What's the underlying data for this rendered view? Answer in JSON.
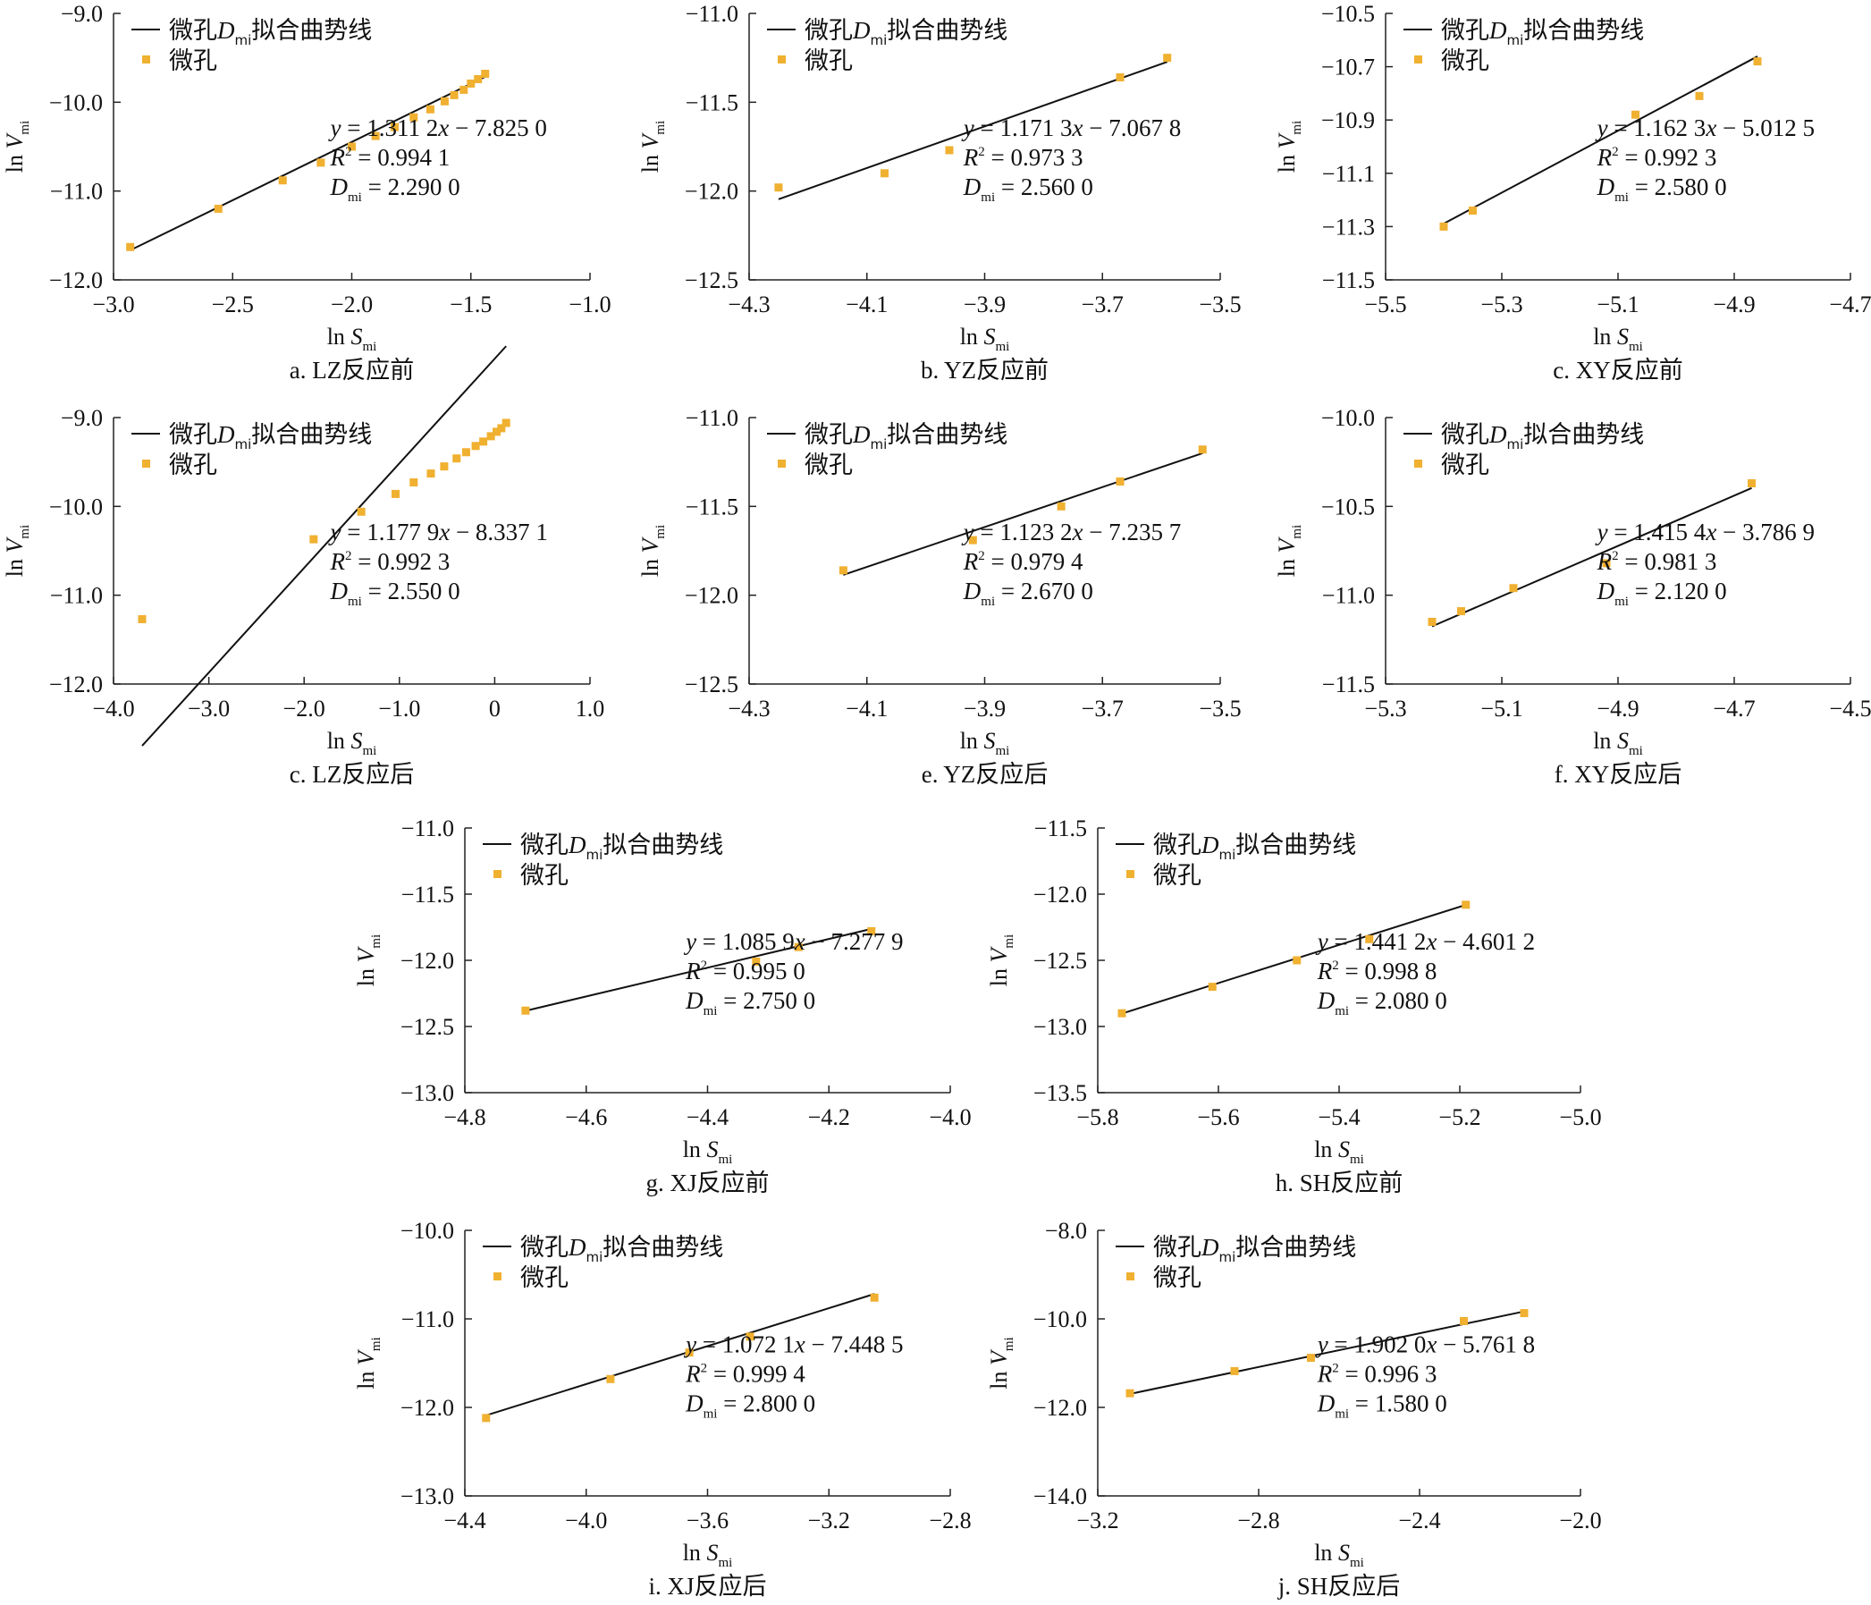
{
  "colors": {
    "point": "#f0b030",
    "line": "#111111",
    "axis": "#222222"
  },
  "legend": {
    "line_label_pre": "微孔",
    "line_label_D": "D",
    "line_label_sub": "mi",
    "line_label_post": "拟合曲势线",
    "points_label": "微孔"
  },
  "axis_labels": {
    "x": {
      "prefix": "ln ",
      "var": "S",
      "sub": "mi"
    },
    "y": {
      "prefix": "ln ",
      "var": "V",
      "sub": "mi"
    }
  },
  "chart_data": [
    {
      "type": "scatter",
      "caption": "a. LZ反应前",
      "xlim": [
        -3.0,
        -1.0
      ],
      "ylim": [
        -12.0,
        -9.0
      ],
      "xticks": [
        "−3.0",
        "−2.5",
        "−2.0",
        "−1.5",
        "−1.0"
      ],
      "yticks": [
        "−9.0",
        "−10.0",
        "−11.0",
        "−12.0"
      ],
      "yticks_values": [
        -9.0,
        -10.0,
        -11.0,
        -12.0
      ],
      "xticks_values": [
        -3.0,
        -2.5,
        -2.0,
        -1.5,
        -1.0
      ],
      "points": [
        [
          -2.93,
          -11.63
        ],
        [
          -2.56,
          -11.2
        ],
        [
          -2.29,
          -10.88
        ],
        [
          -2.13,
          -10.68
        ],
        [
          -2.0,
          -10.5
        ],
        [
          -1.9,
          -10.38
        ],
        [
          -1.82,
          -10.28
        ],
        [
          -1.74,
          -10.17
        ],
        [
          -1.67,
          -10.08
        ],
        [
          -1.61,
          -9.99
        ],
        [
          -1.57,
          -9.92
        ],
        [
          -1.53,
          -9.86
        ],
        [
          -1.5,
          -9.79
        ],
        [
          -1.47,
          -9.74
        ],
        [
          -1.44,
          -9.68
        ]
      ],
      "fit": {
        "x": [
          -2.93,
          -1.44
        ],
        "slope": 1.3112,
        "intercept": -7.825
      },
      "equation": {
        "lhs": "y",
        "mid": " = 1.311 2",
        "x": "x",
        "rest": " − 7.825 0"
      },
      "r2_value": " = 0.994 1",
      "d_value": " = 2.290 0"
    },
    {
      "type": "scatter",
      "caption": "b. YZ反应前",
      "xlim": [
        -4.3,
        -3.5
      ],
      "ylim": [
        -12.5,
        -11.0
      ],
      "xticks": [
        "−4.3",
        "−4.1",
        "−3.9",
        "−3.7",
        "−3.5"
      ],
      "yticks": [
        "−11.0",
        "−11.5",
        "−12.0",
        "−12.5"
      ],
      "yticks_values": [
        -11.0,
        -11.5,
        -12.0,
        -12.5
      ],
      "xticks_values": [
        -4.3,
        -4.1,
        -3.9,
        -3.7,
        -3.5
      ],
      "points": [
        [
          -4.25,
          -11.98
        ],
        [
          -4.07,
          -11.9
        ],
        [
          -3.96,
          -11.77
        ],
        [
          -3.67,
          -11.36
        ],
        [
          -3.59,
          -11.25
        ]
      ],
      "fit": {
        "x": [
          -4.25,
          -3.59
        ],
        "slope": 1.1713,
        "intercept": -7.0678
      },
      "equation": {
        "lhs": "y",
        "mid": " = 1.171 3",
        "x": "x",
        "rest": " − 7.067 8"
      },
      "r2_value": " = 0.973 3",
      "d_value": " = 2.560 0"
    },
    {
      "type": "scatter",
      "caption": "c. XY反应前",
      "xlim": [
        -5.5,
        -4.7
      ],
      "ylim": [
        -11.5,
        -10.5
      ],
      "xticks": [
        "−5.5",
        "−5.3",
        "−5.1",
        "−4.9",
        "−4.7"
      ],
      "yticks": [
        "−10.5",
        "−10.7",
        "−10.9",
        "−11.1",
        "−11.3",
        "−11.5"
      ],
      "yticks_values": [
        -10.5,
        -10.7,
        -10.9,
        -11.1,
        -11.3,
        -11.5
      ],
      "xticks_values": [
        -5.5,
        -5.3,
        -5.1,
        -4.9,
        -4.7
      ],
      "points": [
        [
          -5.4,
          -11.3
        ],
        [
          -5.35,
          -11.24
        ],
        [
          -5.07,
          -10.88
        ],
        [
          -4.96,
          -10.81
        ],
        [
          -4.86,
          -10.68
        ]
      ],
      "fit": {
        "x": [
          -5.4,
          -4.86
        ],
        "slope": 1.1623,
        "intercept": -5.0125
      },
      "equation": {
        "lhs": "y",
        "mid": " = 1.162 3",
        "x": "x",
        "rest": " − 5.012 5"
      },
      "r2_value": " = 0.992 3",
      "d_value": " = 2.580 0"
    },
    {
      "type": "scatter",
      "caption": "c. LZ反应后",
      "xlim": [
        -4.0,
        1.0
      ],
      "ylim": [
        -12.0,
        -9.0
      ],
      "xticks": [
        "−4.0",
        "−3.0",
        "−2.0",
        "−1.0",
        "0",
        "1.0"
      ],
      "yticks": [
        "−9.0",
        "−10.0",
        "−11.0",
        "−12.0"
      ],
      "yticks_values": [
        -9.0,
        -10.0,
        -11.0,
        -12.0
      ],
      "xticks_values": [
        -4.0,
        -3.0,
        -2.0,
        -1.0,
        0.0,
        1.0
      ],
      "points": [
        [
          -3.7,
          -11.27
        ],
        [
          -1.9,
          -10.37
        ],
        [
          -1.4,
          -10.06
        ],
        [
          -1.04,
          -9.86
        ],
        [
          -0.85,
          -9.73
        ],
        [
          -0.67,
          -9.63
        ],
        [
          -0.53,
          -9.55
        ],
        [
          -0.4,
          -9.46
        ],
        [
          -0.3,
          -9.39
        ],
        [
          -0.2,
          -9.32
        ],
        [
          -0.12,
          -9.27
        ],
        [
          -0.04,
          -9.21
        ],
        [
          0.02,
          -9.16
        ],
        [
          0.07,
          -9.12
        ],
        [
          0.12,
          -9.06
        ]
      ],
      "fit": {
        "x": [
          -3.7,
          0.12
        ],
        "slope": 1.1779,
        "intercept": -8.3371
      },
      "equation": {
        "lhs": "y",
        "mid": " = 1.177 9",
        "x": "x",
        "rest": " − 8.337 1"
      },
      "r2_value": " = 0.992 3",
      "d_value": " = 2.550 0"
    },
    {
      "type": "scatter",
      "caption": "e. YZ反应后",
      "xlim": [
        -4.3,
        -3.5
      ],
      "ylim": [
        -12.5,
        -11.0
      ],
      "xticks": [
        "−4.3",
        "−4.1",
        "−3.9",
        "−3.7",
        "−3.5"
      ],
      "yticks": [
        "−11.0",
        "−11.5",
        "−12.0",
        "−12.5"
      ],
      "yticks_values": [
        -11.0,
        -11.5,
        -12.0,
        -12.5
      ],
      "xticks_values": [
        -4.3,
        -4.1,
        -3.9,
        -3.7,
        -3.5
      ],
      "points": [
        [
          -4.14,
          -11.86
        ],
        [
          -3.92,
          -11.69
        ],
        [
          -3.77,
          -11.5
        ],
        [
          -3.67,
          -11.36
        ],
        [
          -3.53,
          -11.18
        ]
      ],
      "fit": {
        "x": [
          -4.14,
          -3.53
        ],
        "slope": 1.1232,
        "intercept": -7.2357
      },
      "equation": {
        "lhs": "y",
        "mid": " = 1.123 2",
        "x": "x",
        "rest": " − 7.235 7"
      },
      "r2_value": " = 0.979 4",
      "d_value": " = 2.670 0"
    },
    {
      "type": "scatter",
      "caption": "f. XY反应后",
      "xlim": [
        -5.3,
        -4.5
      ],
      "ylim": [
        -11.5,
        -10.0
      ],
      "xticks": [
        "−5.3",
        "−5.1",
        "−4.9",
        "−4.7",
        "−4.5"
      ],
      "yticks": [
        "−10.0",
        "−10.5",
        "−11.0",
        "−11.5"
      ],
      "yticks_values": [
        -10.0,
        -10.5,
        -11.0,
        -11.5
      ],
      "xticks_values": [
        -5.3,
        -5.1,
        -4.9,
        -4.7,
        -4.5
      ],
      "points": [
        [
          -5.22,
          -11.15
        ],
        [
          -5.17,
          -11.09
        ],
        [
          -5.08,
          -10.96
        ],
        [
          -4.92,
          -10.82
        ],
        [
          -4.67,
          -10.37
        ]
      ],
      "fit": {
        "x": [
          -5.22,
          -4.67
        ],
        "slope": 1.4154,
        "intercept": -3.7869
      },
      "equation": {
        "lhs": "y",
        "mid": " = 1.415 4",
        "x": "x",
        "rest": " − 3.786 9"
      },
      "r2_value": " = 0.981 3",
      "d_value": " = 2.120 0"
    },
    {
      "type": "scatter",
      "caption": "g. XJ反应前",
      "xlim": [
        -4.8,
        -4.0
      ],
      "ylim": [
        -13.0,
        -11.0
      ],
      "xticks": [
        "−4.8",
        "−4.6",
        "−4.4",
        "−4.2",
        "−4.0"
      ],
      "yticks": [
        "−11.0",
        "−11.5",
        "−12.0",
        "−12.5",
        "−13.0"
      ],
      "yticks_values": [
        -11.0,
        -11.5,
        -12.0,
        -12.5,
        -13.0
      ],
      "xticks_values": [
        -4.8,
        -4.6,
        -4.4,
        -4.2,
        -4.0
      ],
      "points": [
        [
          -4.7,
          -12.38
        ],
        [
          -4.32,
          -12.01
        ],
        [
          -4.25,
          -11.9
        ],
        [
          -4.13,
          -11.78
        ]
      ],
      "fit": {
        "x": [
          -4.7,
          -4.13
        ],
        "slope": 1.0859,
        "intercept": -7.2779
      },
      "equation": {
        "lhs": "y",
        "mid": " = 1.085 9",
        "x": "x",
        "rest": " − 7.277 9"
      },
      "r2_value": " = 0.995 0",
      "d_value": " = 2.750 0"
    },
    {
      "type": "scatter",
      "caption": "h. SH反应前",
      "xlim": [
        -5.8,
        -5.0
      ],
      "ylim": [
        -13.5,
        -11.5
      ],
      "xticks": [
        "−5.8",
        "−5.6",
        "−5.4",
        "−5.2",
        "−5.0"
      ],
      "yticks": [
        "−11.5",
        "−12.0",
        "−12.5",
        "−13.0",
        "−13.5"
      ],
      "yticks_values": [
        -11.5,
        -12.0,
        -12.5,
        -13.0,
        -13.5
      ],
      "xticks_values": [
        -5.8,
        -5.6,
        -5.4,
        -5.2,
        -5.0
      ],
      "points": [
        [
          -5.76,
          -12.9
        ],
        [
          -5.61,
          -12.7
        ],
        [
          -5.47,
          -12.5
        ],
        [
          -5.35,
          -12.34
        ],
        [
          -5.19,
          -12.08
        ]
      ],
      "fit": {
        "x": [
          -5.76,
          -5.19
        ],
        "slope": 1.4412,
        "intercept": -4.6012
      },
      "equation": {
        "lhs": "y",
        "mid": " = 1.441 2",
        "x": "x",
        "rest": " − 4.601 2"
      },
      "r2_value": " = 0.998 8",
      "d_value": " = 2.080 0"
    },
    {
      "type": "scatter",
      "caption": "i. XJ反应后",
      "xlim": [
        -4.4,
        -2.8
      ],
      "ylim": [
        -13.0,
        -10.0
      ],
      "xticks": [
        "−4.4",
        "−4.0",
        "−3.6",
        "−3.2",
        "−2.8"
      ],
      "yticks": [
        "−10.0",
        "−11.0",
        "−12.0",
        "−13.0"
      ],
      "yticks_values": [
        -10.0,
        -11.0,
        -12.0,
        -13.0
      ],
      "xticks_values": [
        -4.4,
        -4.0,
        -3.6,
        -3.2,
        -2.8
      ],
      "points": [
        [
          -4.33,
          -12.12
        ],
        [
          -3.92,
          -11.68
        ],
        [
          -3.66,
          -11.38
        ],
        [
          -3.46,
          -11.2
        ],
        [
          -3.05,
          -10.76
        ]
      ],
      "fit": {
        "x": [
          -4.33,
          -3.05
        ],
        "slope": 1.0721,
        "intercept": -7.4485
      },
      "equation": {
        "lhs": "y",
        "mid": " = 1.072 1",
        "x": "x",
        "rest": " − 7.448 5"
      },
      "r2_value": " = 0.999 4",
      "d_value": " = 2.800 0"
    },
    {
      "type": "scatter",
      "caption": "j. SH反应后",
      "xlim": [
        -3.2,
        -2.0
      ],
      "ylim": [
        -14.0,
        -8.0
      ],
      "xticks": [
        "−3.2",
        "−2.8",
        "−2.4",
        "−2.0"
      ],
      "yticks": [
        "−8.0",
        "−10.0",
        "−12.0",
        "−14.0"
      ],
      "yticks_values": [
        -8.0,
        -10.0,
        -12.0,
        -14.0
      ],
      "xticks_values": [
        -3.2,
        -2.8,
        -2.4,
        -2.0
      ],
      "points": [
        [
          -3.12,
          -11.68
        ],
        [
          -2.86,
          -11.18
        ],
        [
          -2.67,
          -10.88
        ],
        [
          -2.29,
          -10.05
        ],
        [
          -2.14,
          -9.87
        ]
      ],
      "fit": {
        "x": [
          -3.12,
          -2.14
        ],
        "slope": 1.902,
        "intercept": -5.7618
      },
      "equation": {
        "lhs": "y",
        "mid": " = 1.902 0",
        "x": "x",
        "rest": " − 5.761 8"
      },
      "r2_value": " = 0.996 3",
      "d_value": " = 1.580 0"
    }
  ]
}
